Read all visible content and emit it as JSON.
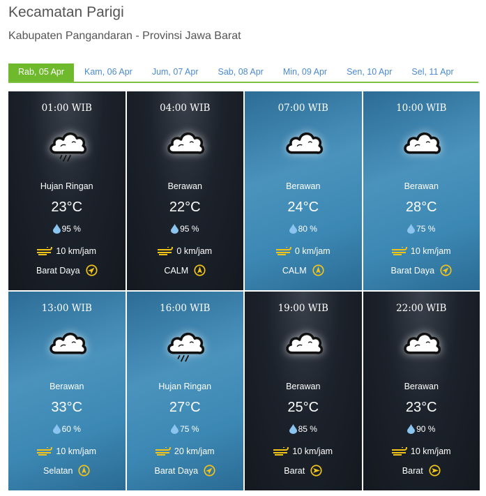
{
  "header": {
    "title": "Kecamatan Parigi",
    "subtitle": "Kabupaten Pangandaran - Provinsi Jawa Barat"
  },
  "tabs": [
    {
      "label": "Rab, 05 Apr",
      "active": true
    },
    {
      "label": "Kam, 06 Apr"
    },
    {
      "label": "Jum, 07 Apr"
    },
    {
      "label": "Sab, 08 Apr"
    },
    {
      "label": "Min, 09 Apr"
    },
    {
      "label": "Sen, 10 Apr"
    },
    {
      "label": "Sel, 11 Apr"
    }
  ],
  "colors": {
    "accent": "#6fba2c",
    "tab_link": "#4a8ad0",
    "icon_yellow": "#f2c318",
    "drop": "#8cc4f0"
  },
  "forecasts": [
    {
      "time": "01:00 WIB",
      "theme": "night",
      "icon": "cloud-rain-icon",
      "condition": "Hujan Ringan",
      "temp": "23°C",
      "humidity": "95 %",
      "wind": "10 km/jam",
      "direction": "Barat Daya",
      "dir_deg": 45
    },
    {
      "time": "04:00 WIB",
      "theme": "night",
      "icon": "cloud-icon",
      "condition": "Berawan",
      "temp": "22°C",
      "humidity": "95 %",
      "wind": "0 km/jam",
      "direction": "CALM",
      "dir_deg": 0
    },
    {
      "time": "07:00 WIB",
      "theme": "day",
      "icon": "cloud-icon",
      "condition": "Berawan",
      "temp": "24°C",
      "humidity": "80 %",
      "wind": "0 km/jam",
      "direction": "CALM",
      "dir_deg": 0
    },
    {
      "time": "10:00 WIB",
      "theme": "day",
      "icon": "cloud-icon",
      "condition": "Berawan",
      "temp": "28°C",
      "humidity": "75 %",
      "wind": "10 km/jam",
      "direction": "Barat Daya",
      "dir_deg": 45
    },
    {
      "time": "13:00 WIB",
      "theme": "day",
      "icon": "cloud-icon",
      "condition": "Berawan",
      "temp": "33°C",
      "humidity": "60 %",
      "wind": "10 km/jam",
      "direction": "Selatan",
      "dir_deg": 0
    },
    {
      "time": "16:00 WIB",
      "theme": "day",
      "icon": "cloud-rain-icon",
      "condition": "Hujan Ringan",
      "temp": "27°C",
      "humidity": "75 %",
      "wind": "20 km/jam",
      "direction": "Barat Daya",
      "dir_deg": 45
    },
    {
      "time": "19:00 WIB",
      "theme": "night",
      "icon": "cloud-icon",
      "condition": "Berawan",
      "temp": "25°C",
      "humidity": "85 %",
      "wind": "10 km/jam",
      "direction": "Barat",
      "dir_deg": 90
    },
    {
      "time": "22:00 WIB",
      "theme": "night",
      "icon": "cloud-icon",
      "condition": "Berawan",
      "temp": "23°C",
      "humidity": "90 %",
      "wind": "10 km/jam",
      "direction": "Barat",
      "dir_deg": 90
    }
  ]
}
